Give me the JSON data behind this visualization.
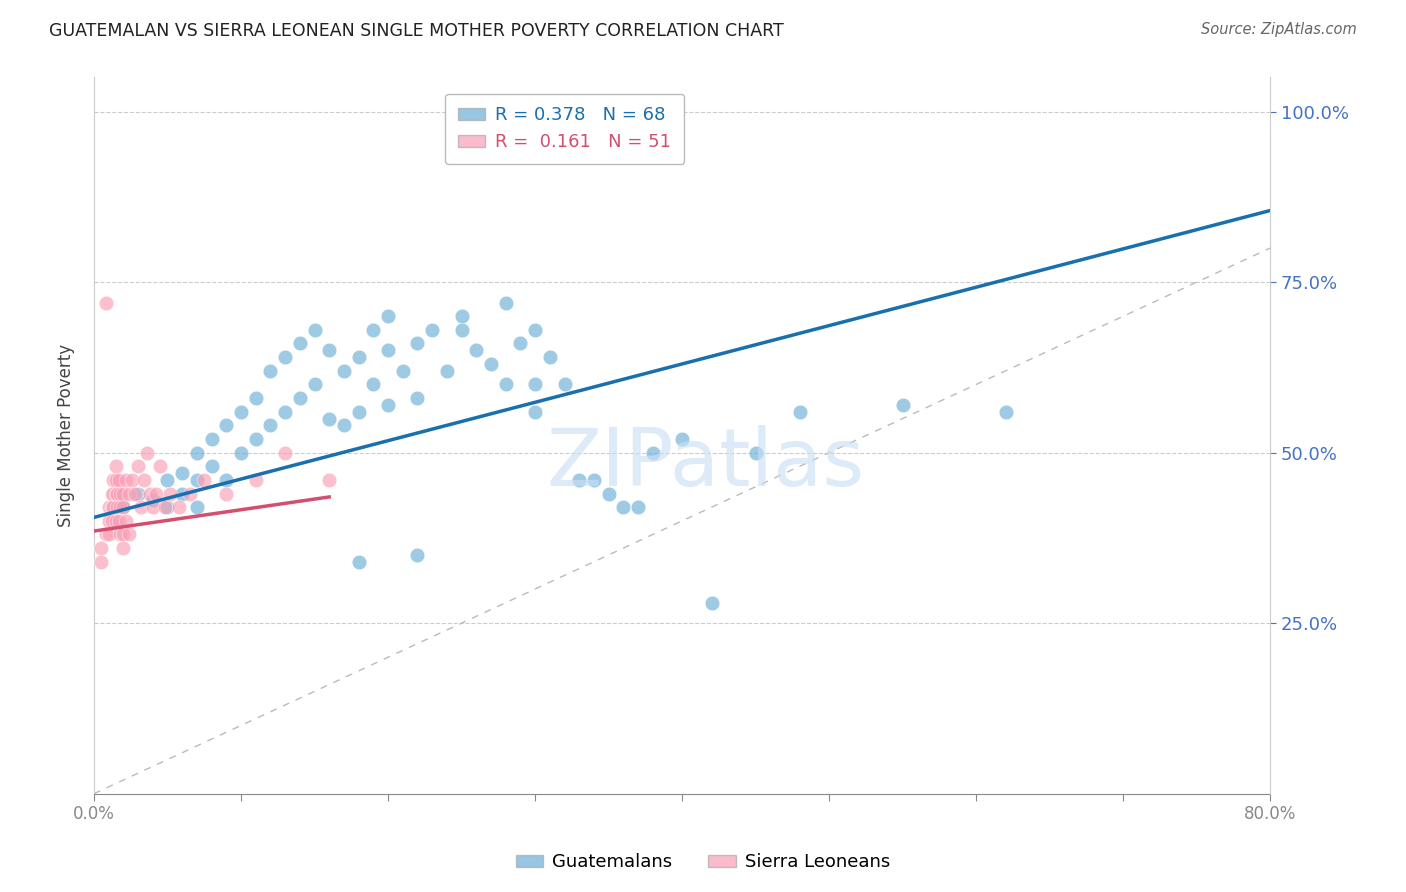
{
  "title": "GUATEMALAN VS SIERRA LEONEAN SINGLE MOTHER POVERTY CORRELATION CHART",
  "source": "Source: ZipAtlas.com",
  "ylabel": "Single Mother Poverty",
  "ytick_labels": [
    "100.0%",
    "75.0%",
    "50.0%",
    "25.0%"
  ],
  "ytick_values": [
    1.0,
    0.75,
    0.5,
    0.25
  ],
  "xlim": [
    0.0,
    0.8
  ],
  "ylim": [
    0.0,
    1.05
  ],
  "watermark": "ZIPatlas",
  "legend_blue_r": "0.378",
  "legend_blue_n": "68",
  "legend_pink_r": "0.161",
  "legend_pink_n": "51",
  "blue_color": "#6baed6",
  "pink_color": "#fa9fb5",
  "trend_blue_color": "#1a6faf",
  "trend_pink_color": "#d44f6e",
  "diagonal_color": "#bbbbbb",
  "blue_points_x": [
    0.02,
    0.03,
    0.04,
    0.05,
    0.05,
    0.06,
    0.06,
    0.07,
    0.07,
    0.07,
    0.08,
    0.08,
    0.09,
    0.09,
    0.1,
    0.1,
    0.11,
    0.11,
    0.12,
    0.12,
    0.13,
    0.13,
    0.14,
    0.14,
    0.15,
    0.15,
    0.16,
    0.16,
    0.17,
    0.17,
    0.18,
    0.18,
    0.19,
    0.19,
    0.2,
    0.2,
    0.21,
    0.22,
    0.22,
    0.23,
    0.24,
    0.25,
    0.26,
    0.27,
    0.28,
    0.29,
    0.3,
    0.3,
    0.31,
    0.32,
    0.33,
    0.34,
    0.35,
    0.36,
    0.37,
    0.38,
    0.4,
    0.42,
    0.45,
    0.48,
    0.2,
    0.25,
    0.28,
    0.3,
    0.55,
    0.62,
    0.22,
    0.18
  ],
  "blue_points_y": [
    0.42,
    0.44,
    0.43,
    0.46,
    0.42,
    0.47,
    0.44,
    0.5,
    0.46,
    0.42,
    0.52,
    0.48,
    0.54,
    0.46,
    0.56,
    0.5,
    0.58,
    0.52,
    0.62,
    0.54,
    0.64,
    0.56,
    0.66,
    0.58,
    0.68,
    0.6,
    0.65,
    0.55,
    0.62,
    0.54,
    0.64,
    0.56,
    0.68,
    0.6,
    0.65,
    0.57,
    0.62,
    0.66,
    0.58,
    0.68,
    0.62,
    0.68,
    0.65,
    0.63,
    0.6,
    0.66,
    0.6,
    0.56,
    0.64,
    0.6,
    0.46,
    0.46,
    0.44,
    0.42,
    0.42,
    0.5,
    0.52,
    0.28,
    0.5,
    0.56,
    0.7,
    0.7,
    0.72,
    0.68,
    0.57,
    0.56,
    0.35,
    0.34
  ],
  "pink_points_x": [
    0.005,
    0.005,
    0.008,
    0.01,
    0.01,
    0.01,
    0.012,
    0.012,
    0.012,
    0.013,
    0.013,
    0.013,
    0.015,
    0.015,
    0.015,
    0.015,
    0.016,
    0.016,
    0.017,
    0.017,
    0.018,
    0.018,
    0.018,
    0.02,
    0.02,
    0.02,
    0.02,
    0.022,
    0.022,
    0.024,
    0.024,
    0.026,
    0.028,
    0.03,
    0.032,
    0.034,
    0.036,
    0.038,
    0.04,
    0.042,
    0.045,
    0.048,
    0.052,
    0.058,
    0.065,
    0.075,
    0.09,
    0.11,
    0.13,
    0.16,
    0.008
  ],
  "pink_points_y": [
    0.36,
    0.34,
    0.38,
    0.42,
    0.4,
    0.38,
    0.44,
    0.42,
    0.4,
    0.46,
    0.44,
    0.42,
    0.48,
    0.46,
    0.44,
    0.4,
    0.44,
    0.42,
    0.46,
    0.4,
    0.44,
    0.42,
    0.38,
    0.44,
    0.42,
    0.38,
    0.36,
    0.46,
    0.4,
    0.44,
    0.38,
    0.46,
    0.44,
    0.48,
    0.42,
    0.46,
    0.5,
    0.44,
    0.42,
    0.44,
    0.48,
    0.42,
    0.44,
    0.42,
    0.44,
    0.46,
    0.44,
    0.46,
    0.5,
    0.46,
    0.72
  ],
  "blue_trend_x": [
    0.0,
    0.8
  ],
  "blue_trend_y": [
    0.405,
    0.855
  ],
  "pink_trend_x": [
    0.0,
    0.16
  ],
  "pink_trend_y": [
    0.385,
    0.435
  ]
}
